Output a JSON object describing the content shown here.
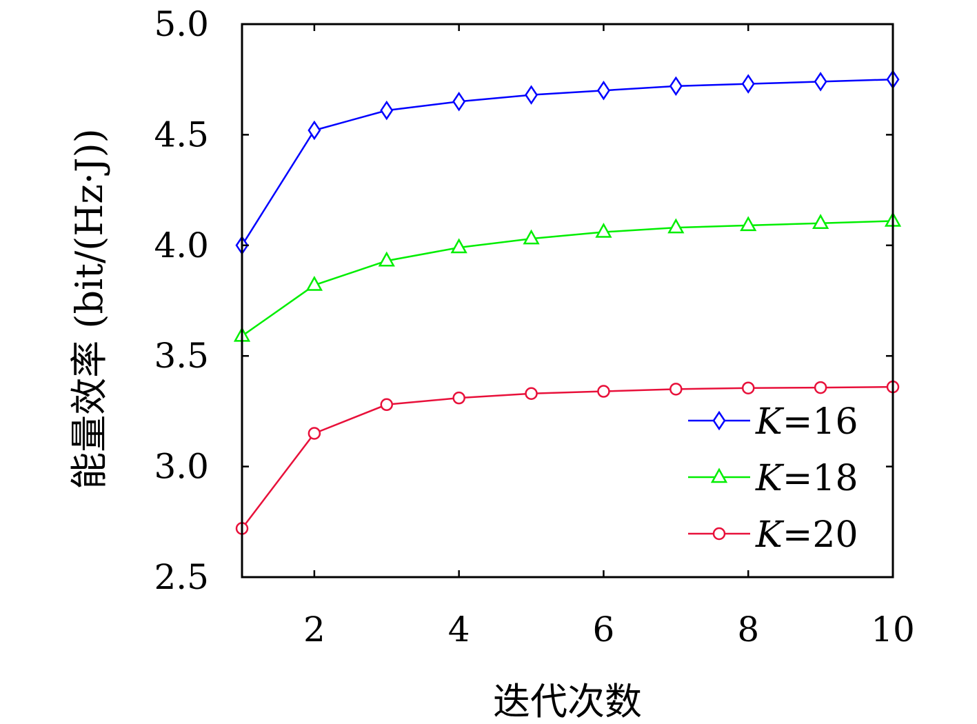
{
  "chart_data": {
    "type": "line",
    "title": "",
    "xlabel": "迭代次数",
    "ylabel": "能量效率 (bit/(Hz·J))",
    "xlim": [
      1,
      10
    ],
    "ylim": [
      2.5,
      5.0
    ],
    "xticks": [
      2,
      4,
      6,
      8,
      10
    ],
    "xtick_labels": [
      "2",
      "4",
      "6",
      "8",
      "10"
    ],
    "yticks": [
      2.5,
      3.0,
      3.5,
      4.0,
      4.5,
      5.0
    ],
    "ytick_labels": [
      "2.5",
      "3.0",
      "3.5",
      "4.0",
      "4.5",
      "5.0"
    ],
    "grid": false,
    "legend_position": "lower-right",
    "x": [
      1,
      2,
      3,
      4,
      5,
      6,
      7,
      8,
      9,
      10
    ],
    "series": [
      {
        "name": "K=16",
        "k_var": "K",
        "k_rest": "=16",
        "color": "#0000ff",
        "marker": "diamond",
        "values": [
          4.0,
          4.52,
          4.61,
          4.65,
          4.68,
          4.7,
          4.72,
          4.73,
          4.74,
          4.75
        ]
      },
      {
        "name": "K=18",
        "k_var": "K",
        "k_rest": "=18",
        "color": "#00ee00",
        "marker": "triangle",
        "values": [
          3.59,
          3.82,
          3.93,
          3.99,
          4.03,
          4.06,
          4.08,
          4.09,
          4.1,
          4.11
        ]
      },
      {
        "name": "K=20",
        "k_var": "K",
        "k_rest": "=20",
        "color": "#e8103a",
        "marker": "circle",
        "values": [
          2.72,
          3.15,
          3.28,
          3.31,
          3.33,
          3.34,
          3.35,
          3.355,
          3.357,
          3.36
        ]
      }
    ]
  }
}
